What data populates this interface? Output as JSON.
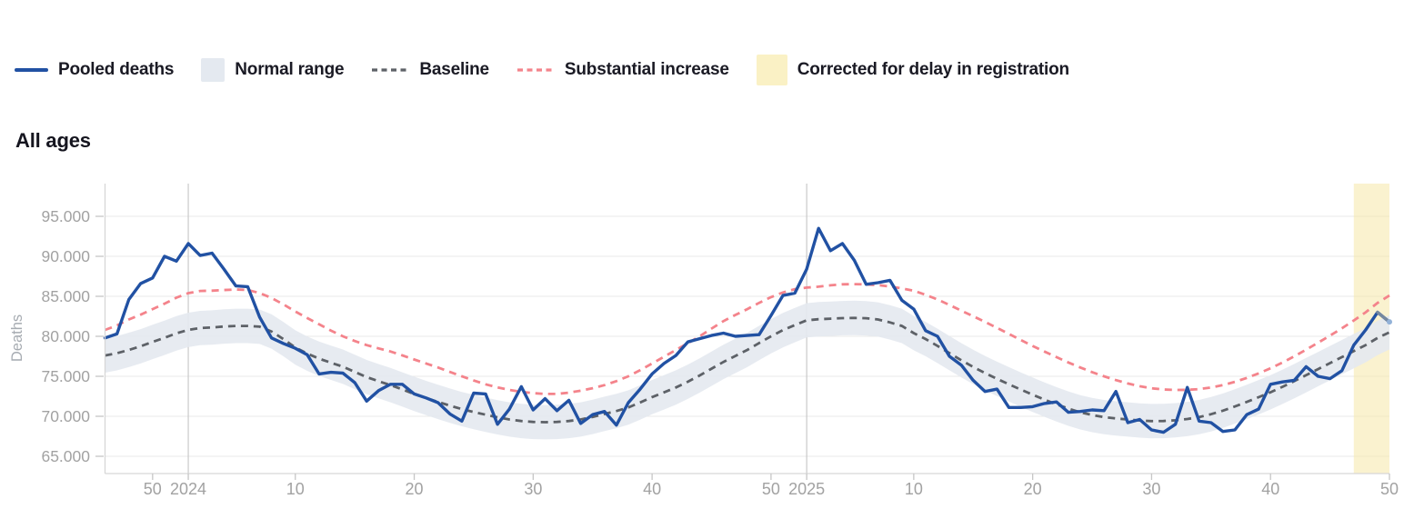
{
  "title": "All ages",
  "legend": {
    "items": [
      {
        "id": "pooled-deaths",
        "label": "Pooled deaths",
        "swatch": "line",
        "color": "#2151a3"
      },
      {
        "id": "normal-range",
        "label": "Normal range",
        "swatch": "box",
        "color": "#e4e9f0"
      },
      {
        "id": "baseline",
        "label": "Baseline",
        "swatch": "dashes",
        "color": "#5d6167"
      },
      {
        "id": "substantial-increase",
        "label": "Substantial increase",
        "swatch": "dashes",
        "color": "#f4838b"
      },
      {
        "id": "corrected",
        "label": "Corrected for delay in registration",
        "swatch": "box-big",
        "color": "#faf1c5"
      }
    ]
  },
  "colors": {
    "pooled": "#2151a3",
    "baseline": "#5d6167",
    "substantial": "#f4838b",
    "band": "#e4e9f0",
    "corrected_fill": "#f5e8a8",
    "grid": "#e9e9e9",
    "year_grid": "#c9c9c9",
    "axis": "#d7d7d7",
    "tick": "#c6c6c6",
    "tick_text": "#a2a2a2",
    "axis_label_text": "#a6abb1"
  },
  "chart_data": {
    "type": "line",
    "title": "All ages",
    "ylabel": "Deaths",
    "x_unit": "ISO week",
    "x_start": "2023-W46",
    "x_end": "2025-W50",
    "n_weeks": 109,
    "grid": true,
    "legend_position": "top",
    "ylim": [
      62840,
      99090
    ],
    "y_ticks": [
      {
        "v": 95000,
        "label": "95.000"
      },
      {
        "v": 90000,
        "label": "90.000"
      },
      {
        "v": 85000,
        "label": "85.000"
      },
      {
        "v": 80000,
        "label": "80.000"
      },
      {
        "v": 75000,
        "label": "75.000"
      },
      {
        "v": 70000,
        "label": "70.000"
      },
      {
        "v": 65000,
        "label": "65.000"
      }
    ],
    "x_ticks": [
      {
        "i": 4,
        "label": "50"
      },
      {
        "i": 7,
        "label": "2024",
        "year_line": true
      },
      {
        "i": 16,
        "label": "10"
      },
      {
        "i": 26,
        "label": "20"
      },
      {
        "i": 36,
        "label": "30"
      },
      {
        "i": 46,
        "label": "40"
      },
      {
        "i": 56,
        "label": "50"
      },
      {
        "i": 59,
        "label": "2025",
        "year_line": true
      },
      {
        "i": 68,
        "label": "10"
      },
      {
        "i": 78,
        "label": "20"
      },
      {
        "i": 88,
        "label": "30"
      },
      {
        "i": 98,
        "label": "40"
      },
      {
        "i": 108,
        "label": "50"
      }
    ],
    "series": {
      "pooled_deaths": [
        79800,
        80300,
        84600,
        86600,
        87300,
        90000,
        89400,
        91600,
        90100,
        90400,
        88400,
        86300,
        86200,
        82400,
        79800,
        79100,
        78500,
        77700,
        75300,
        75500,
        75400,
        74200,
        71900,
        73200,
        74000,
        74000,
        72800,
        72300,
        71700,
        70300,
        69400,
        72900,
        72800,
        69000,
        70900,
        73700,
        70800,
        72200,
        70700,
        72000,
        69100,
        70200,
        70600,
        68900,
        71700,
        73400,
        75300,
        76600,
        77600,
        79300,
        79700,
        80100,
        80400,
        80000,
        80100,
        80200,
        82600,
        85100,
        85400,
        88400,
        93500,
        90700,
        91600,
        89500,
        86500,
        86700,
        87000,
        84500,
        83400,
        80700,
        80000,
        77500,
        76400,
        74500,
        73100,
        73400,
        71100,
        71100,
        71200,
        71600,
        71800,
        70500,
        70600,
        70800,
        70700,
        73100,
        69200,
        69600,
        68300,
        68000,
        69000,
        73600,
        69400,
        69200,
        68100,
        68300,
        70200,
        70900,
        74000,
        74300,
        74500,
        76200,
        75000,
        74700,
        75700,
        78900,
        80800,
        83000,
        81800
      ],
      "baseline_keypoints": [
        [
          0,
          77600
        ],
        [
          2,
          78300
        ],
        [
          4,
          79300
        ],
        [
          7,
          80800
        ],
        [
          9,
          81100
        ],
        [
          11,
          81300
        ],
        [
          13,
          81200
        ],
        [
          14,
          80600
        ],
        [
          16,
          78600
        ],
        [
          18,
          77200
        ],
        [
          20,
          76200
        ],
        [
          22,
          74900
        ],
        [
          24,
          73900
        ],
        [
          26,
          72800
        ],
        [
          28,
          71800
        ],
        [
          30,
          70900
        ],
        [
          32,
          70200
        ],
        [
          34,
          69600
        ],
        [
          36,
          69300
        ],
        [
          38,
          69300
        ],
        [
          40,
          69600
        ],
        [
          42,
          70300
        ],
        [
          44,
          71100
        ],
        [
          46,
          72400
        ],
        [
          48,
          73600
        ],
        [
          50,
          75100
        ],
        [
          52,
          76800
        ],
        [
          54,
          78300
        ],
        [
          56,
          80000
        ],
        [
          58,
          81400
        ],
        [
          59,
          82000
        ],
        [
          61,
          82200
        ],
        [
          63,
          82300
        ],
        [
          65,
          82100
        ],
        [
          67,
          81300
        ],
        [
          68,
          80400
        ],
        [
          70,
          78800
        ],
        [
          72,
          77000
        ],
        [
          74,
          75400
        ],
        [
          76,
          74000
        ],
        [
          78,
          72700
        ],
        [
          80,
          71500
        ],
        [
          82,
          70500
        ],
        [
          84,
          69900
        ],
        [
          86,
          69600
        ],
        [
          88,
          69400
        ],
        [
          90,
          69500
        ],
        [
          92,
          69900
        ],
        [
          94,
          70700
        ],
        [
          96,
          71800
        ],
        [
          98,
          73000
        ],
        [
          100,
          74400
        ],
        [
          102,
          75900
        ],
        [
          104,
          77400
        ],
        [
          106,
          78900
        ],
        [
          108,
          80500
        ]
      ],
      "substantial_increase_keypoints": [
        [
          0,
          80800
        ],
        [
          2,
          82100
        ],
        [
          4,
          83400
        ],
        [
          7,
          85400
        ],
        [
          9,
          85700
        ],
        [
          12,
          85800
        ],
        [
          14,
          84800
        ],
        [
          16,
          83100
        ],
        [
          18,
          81500
        ],
        [
          20,
          80000
        ],
        [
          22,
          78900
        ],
        [
          24,
          78100
        ],
        [
          26,
          77100
        ],
        [
          28,
          76100
        ],
        [
          30,
          75000
        ],
        [
          32,
          74000
        ],
        [
          34,
          73300
        ],
        [
          36,
          72900
        ],
        [
          38,
          72800
        ],
        [
          40,
          73200
        ],
        [
          42,
          73900
        ],
        [
          44,
          75000
        ],
        [
          46,
          76600
        ],
        [
          48,
          78300
        ],
        [
          50,
          80000
        ],
        [
          52,
          81900
        ],
        [
          54,
          83400
        ],
        [
          56,
          84900
        ],
        [
          58,
          85900
        ],
        [
          60,
          86200
        ],
        [
          62,
          86500
        ],
        [
          65,
          86400
        ],
        [
          68,
          85700
        ],
        [
          70,
          84600
        ],
        [
          72,
          83200
        ],
        [
          74,
          81800
        ],
        [
          76,
          80300
        ],
        [
          78,
          78800
        ],
        [
          80,
          77400
        ],
        [
          82,
          76100
        ],
        [
          84,
          75000
        ],
        [
          86,
          74100
        ],
        [
          88,
          73500
        ],
        [
          90,
          73300
        ],
        [
          92,
          73400
        ],
        [
          94,
          73900
        ],
        [
          96,
          74800
        ],
        [
          98,
          76000
        ],
        [
          100,
          77500
        ],
        [
          102,
          79200
        ],
        [
          104,
          81000
        ],
        [
          106,
          83000
        ],
        [
          108,
          85100
        ]
      ],
      "normal_range_halfwidth": 2150
    },
    "corrected_region": {
      "start_index": 105,
      "end_index": 108
    },
    "corrected_tail": {
      "from_index": 107,
      "color": "#75889f",
      "end_dot_color": "#93b2d8"
    }
  }
}
